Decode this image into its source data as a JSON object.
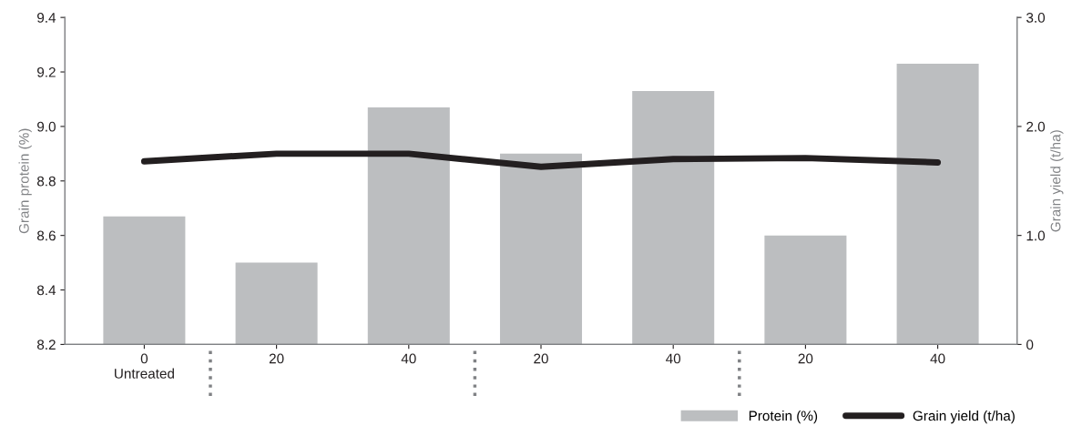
{
  "chart_data": {
    "type": "bar",
    "categories": [
      "0\nUntreated",
      "20",
      "40",
      "20",
      "40",
      "20",
      "40"
    ],
    "series": [
      {
        "name": "Protein (%)",
        "color": "#bcbec0",
        "values": [
          8.67,
          8.5,
          9.07,
          8.9,
          9.13,
          8.6,
          9.23
        ]
      },
      {
        "name": "Grain yield (t/ha)",
        "type": "line",
        "axis": "y2",
        "color": "#231f20",
        "values": [
          1.68,
          1.75,
          1.75,
          1.63,
          1.7,
          1.71,
          1.67
        ]
      }
    ],
    "ylabel": "Grain protein (%)",
    "y2label": "Grain yield (t/ha)",
    "ylim": [
      8.2,
      9.4
    ],
    "yticks": [
      8.2,
      8.4,
      8.6,
      8.8,
      {
        "value": 9.0,
        "label": "9.0"
      },
      9.2,
      9.4
    ],
    "y2lim": [
      0,
      3
    ],
    "y2ticks": [
      0,
      {
        "value": 1,
        "label": "1.0"
      },
      {
        "value": 2,
        "label": "2.0"
      },
      {
        "value": 3,
        "label": "3.0"
      }
    ],
    "grid": false,
    "legend": "bottom right",
    "marker": "none",
    "line_style": "solid"
  }
}
